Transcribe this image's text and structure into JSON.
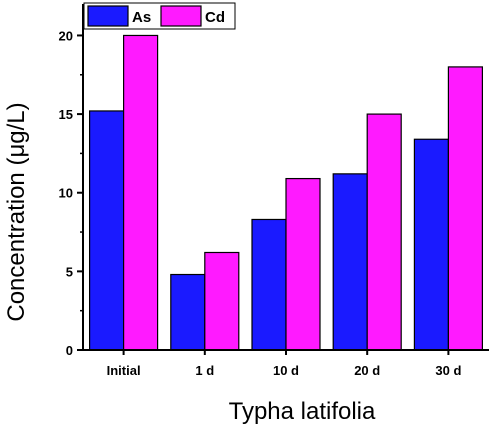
{
  "chart_data": {
    "type": "bar",
    "categories": [
      "Initial",
      "1 d",
      "10 d",
      "20 d",
      "30 d"
    ],
    "series": [
      {
        "name": "As",
        "color": "#1a1aff",
        "values": [
          15.2,
          4.8,
          8.3,
          11.2,
          13.4
        ]
      },
      {
        "name": "Cd",
        "color": "#ff1aff",
        "values": [
          20.0,
          6.2,
          10.9,
          15.0,
          18.0
        ]
      }
    ],
    "ylabel": "Concentration (μg/L)",
    "xlabel": "Typha latifolia",
    "ylim": [
      0,
      22
    ],
    "yticks": [
      0,
      5,
      10,
      15,
      20
    ],
    "grid": false,
    "legend": "top-left"
  }
}
